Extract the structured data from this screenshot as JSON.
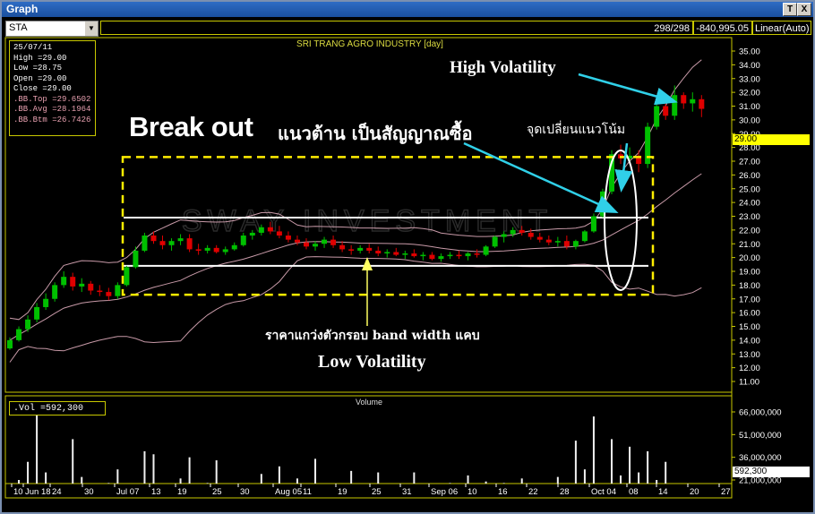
{
  "window": {
    "title": "Graph",
    "btn_text": "T",
    "btn_close": "X"
  },
  "toolbar": {
    "symbol": "STA",
    "bars": "298/298",
    "cursor_value": "-840,995.05",
    "scale_mode": "Linear(Auto)"
  },
  "info_box": {
    "date": "25/07/11",
    "lines": [
      "High  =29.00",
      "Low   =28.75",
      "Open  =29.00",
      "Close =29.00",
      ".BB.Top  =29.6502",
      ".BB.Avg  =28.1964",
      ".BB.Btm  =26.7426"
    ]
  },
  "vol_box": ".Vol   =592,300",
  "last_price_label": "29.00",
  "last_volume_label": "592,300",
  "volume_title": "Volume",
  "annotations": {
    "high_vol": "High Volatility",
    "breakout_en": "Break out",
    "breakout_th": "แนวต้าน เป็นสัญญาณซื้อ",
    "turn_point": "จุดเปลี่ยนแนวโน้ม",
    "narrow_band": "ราคาแกว่งตัวกรอบ band width แคบ",
    "low_vol": "Low Volatility"
  },
  "watermark": "SWAY INVESTMENT",
  "colors": {
    "up": "#00c000",
    "down": "#e00000",
    "band": "#c89aa8",
    "frame": "#c8c800",
    "volume": "#f0f0f0",
    "box": "#ffee00"
  },
  "chart_data": {
    "type": "candlestick",
    "title": "SRI TRANG AGRO INDUSTRY [day]",
    "x_tick_labels": [
      "10",
      "Jun 18",
      "24",
      "30",
      "Jul 07",
      "13",
      "19",
      "25",
      "30",
      "Aug 05",
      "11",
      "19",
      "25",
      "31",
      "Sep 06",
      "10",
      "16",
      "22",
      "28",
      "Oct 04",
      "08",
      "14",
      "20",
      "27"
    ],
    "y_tick_labels": [
      "35.00",
      "34.00",
      "33.00",
      "32.00",
      "31.00",
      "30.00",
      "29.00",
      "28.00",
      "27.00",
      "26.00",
      "25.00",
      "24.00",
      "23.00",
      "22.00",
      "21.00",
      "20.00",
      "19.00",
      "18.00",
      "17.00",
      "16.00",
      "15.00",
      "14.00",
      "13.00",
      "12.00",
      "11.00"
    ],
    "ylim": [
      10.3,
      35.5
    ],
    "volume_tick_labels": [
      "66,000,000",
      "51,000,000",
      "36,000,000",
      "21,000,000"
    ],
    "volume_ylim": [
      0,
      70000000
    ],
    "support_line": 19.4,
    "resistance_line": 22.9,
    "consolidation_box": {
      "y_low": 17.3,
      "y_high": 27.3
    },
    "candles": [
      [
        13.4,
        14.2,
        13.3,
        14.0
      ],
      [
        14.0,
        15.0,
        13.9,
        14.8
      ],
      [
        14.8,
        15.8,
        14.6,
        15.5
      ],
      [
        15.5,
        16.7,
        15.3,
        16.4
      ],
      [
        16.4,
        17.4,
        16.2,
        17.0
      ],
      [
        17.0,
        18.2,
        16.8,
        18.0
      ],
      [
        18.0,
        19.0,
        17.8,
        18.6
      ],
      [
        18.6,
        18.9,
        17.6,
        17.9
      ],
      [
        17.9,
        18.5,
        17.5,
        18.1
      ],
      [
        18.1,
        18.3,
        17.3,
        17.6
      ],
      [
        17.6,
        18.0,
        17.2,
        17.5
      ],
      [
        17.5,
        17.8,
        16.9,
        17.2
      ],
      [
        17.2,
        18.2,
        17.0,
        18.0
      ],
      [
        18.0,
        19.4,
        17.9,
        19.3
      ],
      [
        19.3,
        20.8,
        19.2,
        20.5
      ],
      [
        20.5,
        21.8,
        20.4,
        21.6
      ],
      [
        21.6,
        21.9,
        21.0,
        21.2
      ],
      [
        21.2,
        21.6,
        20.6,
        20.9
      ],
      [
        20.9,
        21.4,
        20.5,
        21.2
      ],
      [
        21.2,
        21.7,
        20.9,
        21.4
      ],
      [
        21.4,
        21.7,
        20.4,
        20.6
      ],
      [
        20.6,
        21.0,
        20.2,
        20.5
      ],
      [
        20.5,
        20.9,
        20.3,
        20.7
      ],
      [
        20.7,
        20.9,
        20.3,
        20.4
      ],
      [
        20.4,
        20.8,
        20.2,
        20.6
      ],
      [
        20.6,
        21.1,
        20.5,
        20.9
      ],
      [
        20.9,
        21.8,
        20.8,
        21.6
      ],
      [
        21.6,
        22.0,
        21.3,
        21.8
      ],
      [
        21.8,
        22.4,
        21.6,
        22.2
      ],
      [
        22.2,
        22.6,
        21.7,
        21.9
      ],
      [
        21.9,
        22.3,
        21.4,
        21.6
      ],
      [
        21.6,
        21.9,
        21.1,
        21.3
      ],
      [
        21.3,
        21.6,
        20.9,
        21.1
      ],
      [
        21.1,
        21.4,
        20.6,
        20.8
      ],
      [
        20.8,
        21.2,
        20.5,
        21.0
      ],
      [
        21.0,
        21.5,
        20.7,
        21.3
      ],
      [
        21.3,
        21.6,
        20.7,
        20.9
      ],
      [
        20.9,
        21.2,
        20.4,
        20.6
      ],
      [
        20.6,
        20.9,
        20.2,
        20.5
      ],
      [
        20.5,
        20.9,
        20.3,
        20.7
      ],
      [
        20.7,
        21.0,
        20.3,
        20.5
      ],
      [
        20.5,
        20.8,
        20.1,
        20.3
      ],
      [
        20.3,
        20.6,
        20.0,
        20.4
      ],
      [
        20.4,
        20.7,
        20.1,
        20.2
      ],
      [
        20.2,
        20.5,
        19.9,
        20.3
      ],
      [
        20.3,
        20.6,
        20.0,
        20.1
      ],
      [
        20.1,
        20.4,
        19.8,
        20.2
      ],
      [
        20.2,
        20.4,
        19.8,
        19.9
      ],
      [
        19.9,
        20.3,
        19.7,
        20.1
      ],
      [
        20.1,
        20.4,
        19.9,
        20.2
      ],
      [
        20.2,
        20.5,
        19.9,
        20.1
      ],
      [
        20.1,
        20.4,
        19.8,
        20.3
      ],
      [
        20.3,
        20.6,
        20.0,
        20.2
      ],
      [
        20.2,
        20.9,
        20.1,
        20.8
      ],
      [
        20.8,
        21.6,
        20.7,
        21.5
      ],
      [
        21.5,
        21.9,
        21.1,
        21.7
      ],
      [
        21.7,
        22.2,
        21.5,
        22.0
      ],
      [
        22.0,
        22.3,
        21.6,
        21.8
      ],
      [
        21.8,
        22.1,
        21.3,
        21.5
      ],
      [
        21.5,
        21.8,
        21.1,
        21.3
      ],
      [
        21.3,
        21.6,
        20.9,
        21.1
      ],
      [
        21.1,
        21.5,
        20.8,
        21.2
      ],
      [
        21.2,
        21.6,
        20.6,
        20.8
      ],
      [
        20.8,
        21.3,
        20.6,
        21.2
      ],
      [
        21.2,
        22.0,
        21.1,
        21.9
      ],
      [
        21.9,
        23.2,
        21.8,
        23.0
      ],
      [
        23.0,
        25.0,
        22.9,
        24.8
      ],
      [
        24.8,
        27.8,
        24.6,
        27.5
      ],
      [
        27.5,
        28.2,
        26.8,
        27.2
      ],
      [
        27.2,
        28.0,
        26.9,
        27.4
      ],
      [
        27.4,
        27.8,
        26.2,
        26.8
      ],
      [
        26.8,
        29.8,
        26.5,
        29.5
      ],
      [
        29.5,
        31.5,
        29.3,
        31.0
      ],
      [
        31.0,
        31.3,
        30.0,
        30.3
      ],
      [
        30.3,
        32.5,
        30.0,
        31.8
      ],
      [
        31.8,
        32.0,
        30.8,
        31.2
      ],
      [
        31.2,
        32.0,
        30.6,
        31.5
      ],
      [
        31.5,
        31.8,
        30.2,
        30.8
      ]
    ],
    "volume_values": [
      14000000,
      21000000,
      33000000,
      64000000,
      26000000,
      14000000,
      18000000,
      48000000,
      23000000,
      17000000,
      10000000,
      19000000,
      28000000,
      12000000,
      16000000,
      40000000,
      38000000,
      15000000,
      12000000,
      22000000,
      36000000,
      14000000,
      19000000,
      34000000,
      11000000,
      15000000,
      9000000,
      18000000,
      25000000,
      13000000,
      30000000,
      11000000,
      22000000,
      10000000,
      35000000,
      15000000,
      17000000,
      12000000,
      27000000,
      9000000,
      14000000,
      26000000,
      11000000,
      18000000,
      13000000,
      26000000,
      9000000,
      16000000,
      11000000,
      19000000,
      13000000,
      24000000,
      12000000,
      20000000,
      14000000,
      19000000,
      13000000,
      22000000,
      15000000,
      18000000,
      14000000,
      23000000,
      17000000,
      47000000,
      28000000,
      63000000,
      18000000,
      48000000,
      24000000,
      43000000,
      26000000,
      40000000,
      21000000,
      33000000,
      17000000,
      16000000,
      12000000,
      8000000
    ],
    "bollinger": {
      "top": [],
      "avg": [],
      "btm": []
    }
  }
}
